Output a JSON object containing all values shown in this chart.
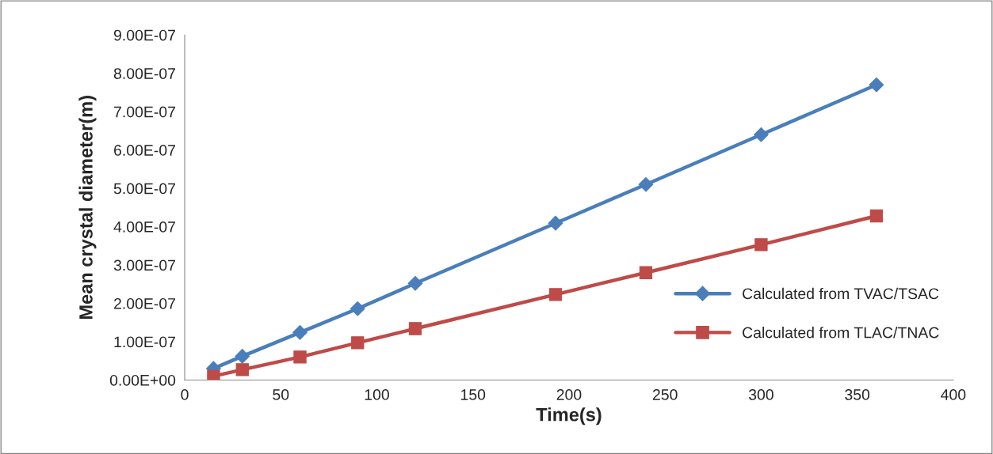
{
  "chart_data": {
    "type": "line",
    "xlabel": "Time(s)",
    "ylabel": "Mean crystal diameter(m)",
    "x": [
      15,
      30,
      60,
      90,
      120,
      193,
      240,
      300,
      360
    ],
    "series": [
      {
        "name": "Calculated from TVAC/TSAC",
        "color": "#4a7ebb",
        "marker": "diamond",
        "values": [
          3e-08,
          6.2e-08,
          1.24e-07,
          1.86e-07,
          2.52e-07,
          4.09e-07,
          5.1e-07,
          6.4e-07,
          7.7e-07
        ]
      },
      {
        "name": "Calculated from TLAC/TNAC",
        "color": "#be4b48",
        "marker": "square",
        "values": [
          1e-08,
          2.7e-08,
          6e-08,
          9.7e-08,
          1.34e-07,
          2.23e-07,
          2.8e-07,
          3.53e-07,
          4.28e-07
        ]
      }
    ],
    "xlim": [
      0,
      400
    ],
    "xticks": [
      0,
      50,
      100,
      150,
      200,
      250,
      300,
      350,
      400
    ],
    "ylim": [
      0,
      9e-07
    ],
    "yticks": [
      {
        "value": 0,
        "label": "0.00E+00"
      },
      {
        "value": 1e-07,
        "label": "1.00E-07"
      },
      {
        "value": 2e-07,
        "label": "2.00E-07"
      },
      {
        "value": 3e-07,
        "label": "3.00E-07"
      },
      {
        "value": 4e-07,
        "label": "4.00E-07"
      },
      {
        "value": 5e-07,
        "label": "5.00E-07"
      },
      {
        "value": 6e-07,
        "label": "6.00E-07"
      },
      {
        "value": 7e-07,
        "label": "7.00E-07"
      },
      {
        "value": 8e-07,
        "label": "8.00E-07"
      },
      {
        "value": 9e-07,
        "label": "9.00E-07"
      }
    ],
    "grid": false,
    "legend": "right",
    "line_style": "solid"
  }
}
